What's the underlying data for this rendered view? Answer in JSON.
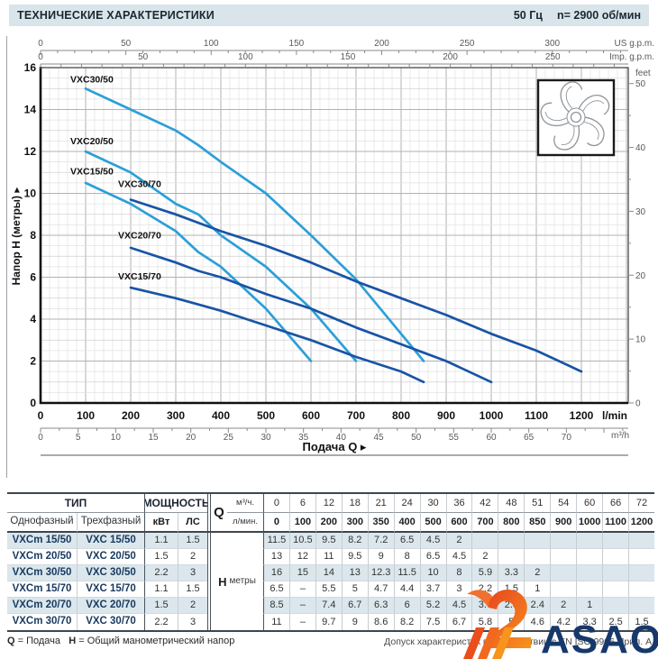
{
  "header": {
    "title": "ТЕХНИЧЕСКИЕ ХАРАКТЕРИСТИКИ",
    "frequency": "50 Гц",
    "speed": "n= 2900  об/мин"
  },
  "chart_data": {
    "type": "line",
    "xlabel": "Подача Q",
    "ylabel": "Напор H (метры)",
    "x_main": {
      "unit": "l/min",
      "min": 0,
      "max": 1200,
      "labels": [
        0,
        100,
        200,
        300,
        400,
        500,
        600,
        700,
        800,
        900,
        1000,
        1100,
        1200
      ]
    },
    "y_main": {
      "unit": "м",
      "min": 0,
      "max": 16,
      "labels": [
        0,
        2,
        4,
        6,
        8,
        10,
        12,
        14,
        16
      ]
    },
    "x_m3h": {
      "unit": "m³/h",
      "labels": [
        0,
        5,
        10,
        15,
        20,
        25,
        30,
        35,
        40,
        45,
        50,
        55,
        60,
        65,
        70
      ]
    },
    "x_usgpm": {
      "unit": "US g.p.m.",
      "labels": [
        0,
        50,
        100,
        150,
        200,
        250,
        300
      ],
      "lmin_per_unit": 3.785
    },
    "x_impgpm": {
      "unit": "Imp. g.p.m.",
      "labels": [
        0,
        50,
        100,
        150,
        200,
        250
      ],
      "lmin_per_unit": 4.546
    },
    "y_feet": {
      "unit": "feet",
      "labels": [
        0,
        10,
        20,
        30,
        40,
        50
      ],
      "m_per_unit": 0.3048
    },
    "grid": true,
    "colors": {
      "light_blue": "#2b9fd8",
      "dark_blue": "#1854a6"
    },
    "series": [
      {
        "name": "VXC30/50",
        "color": "light_blue",
        "label_at": [
          66,
          15.3
        ],
        "points": [
          [
            100,
            15
          ],
          [
            200,
            14
          ],
          [
            300,
            13
          ],
          [
            350,
            12.3
          ],
          [
            400,
            11.5
          ],
          [
            500,
            10
          ],
          [
            600,
            8
          ],
          [
            700,
            5.9
          ],
          [
            800,
            3.3
          ],
          [
            850,
            2
          ]
        ]
      },
      {
        "name": "VXC20/50",
        "color": "light_blue",
        "label_at": [
          66,
          12.35
        ],
        "points": [
          [
            100,
            12
          ],
          [
            200,
            11
          ],
          [
            300,
            9.5
          ],
          [
            350,
            9
          ],
          [
            400,
            8
          ],
          [
            500,
            6.5
          ],
          [
            600,
            4.5
          ],
          [
            700,
            2
          ]
        ]
      },
      {
        "name": "VXC15/50",
        "color": "light_blue",
        "label_at": [
          66,
          10.9
        ],
        "points": [
          [
            100,
            10.5
          ],
          [
            200,
            9.5
          ],
          [
            300,
            8.2
          ],
          [
            350,
            7.2
          ],
          [
            400,
            6.5
          ],
          [
            500,
            4.5
          ],
          [
            600,
            2
          ]
        ]
      },
      {
        "name": "VXC30/70",
        "color": "dark_blue",
        "label_at": [
          172,
          10.3
        ],
        "points": [
          [
            200,
            9.7
          ],
          [
            300,
            9
          ],
          [
            350,
            8.6
          ],
          [
            400,
            8.2
          ],
          [
            500,
            7.5
          ],
          [
            600,
            6.7
          ],
          [
            700,
            5.8
          ],
          [
            800,
            5
          ],
          [
            850,
            4.6
          ],
          [
            900,
            4.2
          ],
          [
            1000,
            3.3
          ],
          [
            1100,
            2.5
          ],
          [
            1200,
            1.5
          ]
        ]
      },
      {
        "name": "VXC20/70",
        "color": "dark_blue",
        "label_at": [
          172,
          7.85
        ],
        "points": [
          [
            200,
            7.4
          ],
          [
            300,
            6.7
          ],
          [
            350,
            6.3
          ],
          [
            400,
            6
          ],
          [
            500,
            5.2
          ],
          [
            600,
            4.5
          ],
          [
            700,
            3.6
          ],
          [
            800,
            2.8
          ],
          [
            850,
            2.4
          ],
          [
            900,
            2
          ],
          [
            1000,
            1
          ]
        ]
      },
      {
        "name": "VXC15/70",
        "color": "dark_blue",
        "label_at": [
          172,
          5.9
        ],
        "points": [
          [
            200,
            5.5
          ],
          [
            300,
            5
          ],
          [
            350,
            4.7
          ],
          [
            400,
            4.4
          ],
          [
            500,
            3.7
          ],
          [
            600,
            3
          ],
          [
            700,
            2.2
          ],
          [
            800,
            1.5
          ],
          [
            850,
            1
          ]
        ]
      }
    ]
  },
  "table": {
    "col_groups": {
      "tip": "ТИП",
      "power": "МОЩНОСТЬ"
    },
    "headers": {
      "single_phase": "Однофазный",
      "three_phase": "Трехфазный",
      "kw": "кВт",
      "hp": "ЛС",
      "q": "Q",
      "m3h": "м³/ч.",
      "lmin": "л/мин.",
      "h_key": "H",
      "h_unit": "метры"
    },
    "q_m3h": [
      "0",
      "6",
      "12",
      "18",
      "21",
      "24",
      "30",
      "36",
      "42",
      "48",
      "51",
      "54",
      "60",
      "66",
      "72"
    ],
    "q_lmin": [
      "0",
      "100",
      "200",
      "300",
      "350",
      "400",
      "500",
      "600",
      "700",
      "800",
      "850",
      "900",
      "1000",
      "1100",
      "1200"
    ],
    "rows": [
      {
        "single": "VXCm 15/50",
        "three": "VXC 15/50",
        "kw": "1.1",
        "hp": "1.5",
        "h": [
          "11.5",
          "10.5",
          "9.5",
          "8.2",
          "7.2",
          "6.5",
          "4.5",
          "2",
          "",
          "",
          "",
          "",
          "",
          "",
          ""
        ]
      },
      {
        "single": "VXCm 20/50",
        "three": "VXC 20/50",
        "kw": "1.5",
        "hp": "2",
        "h": [
          "13",
          "12",
          "11",
          "9.5",
          "9",
          "8",
          "6.5",
          "4.5",
          "2",
          "",
          "",
          "",
          "",
          "",
          ""
        ]
      },
      {
        "single": "VXCm 30/50",
        "three": "VXC 30/50",
        "kw": "2.2",
        "hp": "3",
        "h": [
          "16",
          "15",
          "14",
          "13",
          "12.3",
          "11.5",
          "10",
          "8",
          "5.9",
          "3.3",
          "2",
          "",
          "",
          "",
          ""
        ]
      },
      {
        "single": "VXCm 15/70",
        "three": "VXC 15/70",
        "kw": "1.1",
        "hp": "1.5",
        "h": [
          "6.5",
          "–",
          "5.5",
          "5",
          "4.7",
          "4.4",
          "3.7",
          "3",
          "2.2",
          "1.5",
          "1",
          "",
          "",
          "",
          ""
        ]
      },
      {
        "single": "VXCm 20/70",
        "three": "VXC 20/70",
        "kw": "1.5",
        "hp": "2",
        "h": [
          "8.5",
          "–",
          "7.4",
          "6.7",
          "6.3",
          "6",
          "5.2",
          "4.5",
          "3.6",
          "2.8",
          "2.4",
          "2",
          "1",
          "",
          ""
        ]
      },
      {
        "single": "VXCm 30/70",
        "three": "VXC 30/70",
        "kw": "2.2",
        "hp": "3",
        "h": [
          "11",
          "–",
          "9.7",
          "9",
          "8.6",
          "8.2",
          "7.5",
          "6.7",
          "5.8",
          "5",
          "4.6",
          "4.2",
          "3.3",
          "2.5",
          "1.5"
        ]
      }
    ]
  },
  "footer": {
    "q_key": "Q",
    "q_val": "= Подача",
    "h_key": "H",
    "h_val": "= Общий манометрический напор",
    "right": "Допуск характеристик в соответствии с EN ISO 9906 Прил. А."
  },
  "watermark": {
    "logo_text": "ASAO"
  }
}
